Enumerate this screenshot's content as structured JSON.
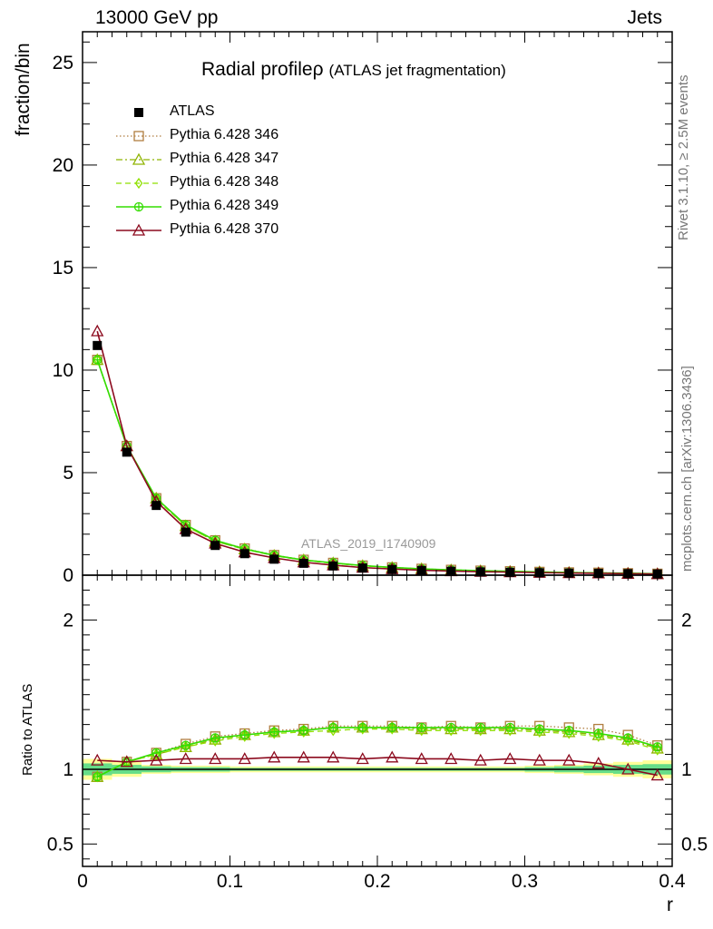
{
  "header": {
    "left": "13000 GeV pp",
    "right": "Jets"
  },
  "title": {
    "main": "Radial profile",
    "symbol": "ρ",
    "sub": "(ATLAS jet fragmentation)"
  },
  "axes": {
    "top_ylabel": "fraction/bin",
    "bottom_ylabel": "Ratio to ATLAS",
    "xlabel": "r"
  },
  "side_text": {
    "rivet": "Rivet 3.1.10, ≥ 2.5M events",
    "mcplots": "mcplots.cern.ch [arXiv:1306.3436]"
  },
  "analysis_id": "ATLAS_2019_I1740909",
  "colors": {
    "data": "#000000",
    "p346": "#b07e40",
    "p347": "#8fb300",
    "p348": "#8fe000",
    "p349": "#33dd00",
    "p370": "#8c0a1e",
    "band_outer": "#ffff99",
    "band_inner": "#66dd88"
  },
  "chart_data": [
    {
      "type": "scatter",
      "panel": "main",
      "xlim": [
        0,
        0.4
      ],
      "ylim": [
        0,
        26.5
      ],
      "yticks": [
        0,
        5,
        10,
        15,
        20,
        25
      ],
      "xticks": [
        0,
        0.1,
        0.2,
        0.3,
        0.4
      ],
      "x": [
        0.01,
        0.03,
        0.05,
        0.07,
        0.09,
        0.11,
        0.13,
        0.15,
        0.17,
        0.19,
        0.21,
        0.23,
        0.25,
        0.27,
        0.29,
        0.31,
        0.33,
        0.35,
        0.37,
        0.39
      ],
      "series": [
        {
          "name": "ATLAS",
          "key": "data",
          "marker": "square",
          "values": [
            11.2,
            6.0,
            3.4,
            2.1,
            1.45,
            1.05,
            0.78,
            0.58,
            0.45,
            0.35,
            0.28,
            0.23,
            0.19,
            0.16,
            0.14,
            0.12,
            0.1,
            0.09,
            0.075,
            0.06
          ]
        },
        {
          "name": "Pythia 6.428 346",
          "key": "p346",
          "marker": "open-square",
          "line": "dotted",
          "values": [
            10.5,
            6.3,
            3.75,
            2.45,
            1.7,
            1.3,
            0.98,
            0.75,
            0.6,
            0.47,
            0.38,
            0.31,
            0.26,
            0.22,
            0.19,
            0.16,
            0.135,
            0.12,
            0.095,
            0.07
          ]
        },
        {
          "name": "Pythia 6.428 347",
          "key": "p347",
          "marker": "open-triangle",
          "line": "dashdot",
          "values": [
            10.5,
            6.3,
            3.75,
            2.4,
            1.65,
            1.27,
            0.96,
            0.74,
            0.59,
            0.46,
            0.37,
            0.31,
            0.25,
            0.21,
            0.18,
            0.16,
            0.13,
            0.11,
            0.09,
            0.065
          ]
        },
        {
          "name": "Pythia 6.428 348",
          "key": "p348",
          "marker": "open-diamond",
          "line": "dashed",
          "values": [
            10.5,
            6.3,
            3.7,
            2.4,
            1.65,
            1.26,
            0.95,
            0.73,
            0.58,
            0.46,
            0.37,
            0.3,
            0.25,
            0.21,
            0.18,
            0.15,
            0.13,
            0.11,
            0.09,
            0.065
          ]
        },
        {
          "name": "Pythia 6.428 349",
          "key": "p349",
          "marker": "cross-circle",
          "line": "solid",
          "values": [
            10.5,
            6.3,
            3.75,
            2.45,
            1.7,
            1.28,
            0.97,
            0.74,
            0.6,
            0.47,
            0.38,
            0.31,
            0.26,
            0.22,
            0.19,
            0.16,
            0.13,
            0.11,
            0.095,
            0.068
          ]
        },
        {
          "name": "Pythia 6.428 370",
          "key": "p370",
          "marker": "open-triangle",
          "line": "solid",
          "values": [
            11.9,
            6.3,
            3.6,
            2.25,
            1.55,
            1.12,
            0.84,
            0.63,
            0.49,
            0.37,
            0.3,
            0.24,
            0.2,
            0.17,
            0.15,
            0.125,
            0.105,
            0.093,
            0.075,
            0.058
          ]
        }
      ]
    },
    {
      "type": "scatter",
      "panel": "ratio",
      "xlim": [
        0,
        0.4
      ],
      "ylim": [
        0.35,
        2.3
      ],
      "yticks": [
        0.5,
        1,
        2
      ],
      "xticks": [
        0,
        0.1,
        0.2,
        0.3,
        0.4
      ],
      "x": [
        0.01,
        0.03,
        0.05,
        0.07,
        0.09,
        0.11,
        0.13,
        0.15,
        0.17,
        0.19,
        0.21,
        0.23,
        0.25,
        0.27,
        0.29,
        0.31,
        0.33,
        0.35,
        0.37,
        0.39
      ],
      "band_outer": [
        0.07,
        0.05,
        0.03,
        0.025,
        0.025,
        0.02,
        0.02,
        0.02,
        0.02,
        0.02,
        0.02,
        0.02,
        0.02,
        0.02,
        0.02,
        0.025,
        0.03,
        0.04,
        0.05,
        0.06
      ],
      "band_inner": [
        0.04,
        0.03,
        0.02,
        0.015,
        0.015,
        0.01,
        0.01,
        0.01,
        0.01,
        0.01,
        0.01,
        0.01,
        0.01,
        0.01,
        0.01,
        0.015,
        0.02,
        0.025,
        0.03,
        0.035
      ],
      "series": [
        {
          "key": "p346",
          "marker": "open-square",
          "line": "dotted",
          "values": [
            0.95,
            1.05,
            1.11,
            1.17,
            1.22,
            1.24,
            1.26,
            1.27,
            1.29,
            1.29,
            1.29,
            1.28,
            1.29,
            1.28,
            1.29,
            1.29,
            1.28,
            1.27,
            1.23,
            1.16
          ]
        },
        {
          "key": "p347",
          "marker": "open-triangle",
          "line": "dashdot",
          "values": [
            0.95,
            1.05,
            1.1,
            1.15,
            1.2,
            1.23,
            1.25,
            1.26,
            1.28,
            1.28,
            1.28,
            1.27,
            1.27,
            1.27,
            1.27,
            1.26,
            1.25,
            1.23,
            1.2,
            1.14
          ]
        },
        {
          "key": "p348",
          "marker": "open-diamond",
          "line": "dashed",
          "values": [
            0.95,
            1.05,
            1.1,
            1.15,
            1.19,
            1.22,
            1.24,
            1.25,
            1.26,
            1.27,
            1.27,
            1.26,
            1.26,
            1.26,
            1.26,
            1.25,
            1.24,
            1.22,
            1.19,
            1.13
          ]
        },
        {
          "key": "p349",
          "marker": "cross-circle",
          "line": "solid",
          "values": [
            0.95,
            1.05,
            1.11,
            1.16,
            1.21,
            1.23,
            1.25,
            1.26,
            1.28,
            1.28,
            1.28,
            1.28,
            1.28,
            1.28,
            1.28,
            1.27,
            1.26,
            1.24,
            1.21,
            1.15
          ]
        },
        {
          "key": "p370",
          "marker": "open-triangle",
          "line": "solid",
          "values": [
            1.06,
            1.05,
            1.06,
            1.07,
            1.07,
            1.07,
            1.08,
            1.08,
            1.08,
            1.07,
            1.08,
            1.07,
            1.07,
            1.06,
            1.07,
            1.06,
            1.06,
            1.04,
            1.0,
            0.96
          ]
        }
      ]
    }
  ]
}
